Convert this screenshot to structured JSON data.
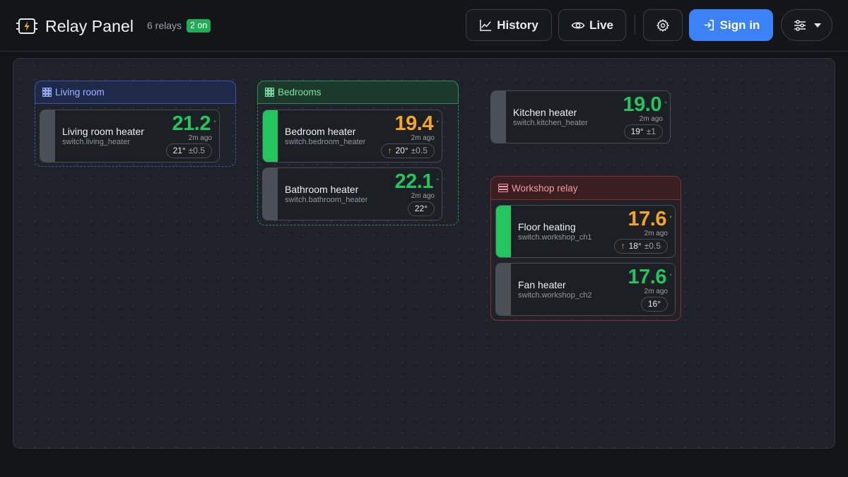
{
  "app": {
    "title": "Relay Panel",
    "relay_count": "6 relays",
    "on_badge": "2 on"
  },
  "toolbar": {
    "history_label": "History",
    "live_label": "Live",
    "signin_label": "Sign in"
  },
  "colors": {
    "on": "#22c55e",
    "off": "#4a4f58",
    "accent": "#3b82f6",
    "heating": "#f5a524"
  },
  "groups": [
    {
      "label": "Living room",
      "icon": "grid-icon",
      "color": "blue",
      "cards": [
        {
          "name": "Living room heater",
          "entity": "switch.living_heater",
          "temp": "21.2",
          "deg": "°",
          "ago": "2m ago",
          "setpoint": "21°",
          "tolerance": "±0.5",
          "on": false,
          "heating": false
        }
      ]
    },
    {
      "label": "Bedrooms",
      "icon": "grid-icon",
      "color": "green",
      "cards": [
        {
          "name": "Bedroom heater",
          "entity": "switch.bedroom_heater",
          "temp": "19.4",
          "deg": "°",
          "ago": "2m ago",
          "setpoint": "20°",
          "tolerance": "±0.5",
          "on": true,
          "heating": true
        },
        {
          "name": "Bathroom heater",
          "entity": "switch.bathroom_heater",
          "temp": "22.1",
          "deg": "°",
          "ago": "2m ago",
          "setpoint": "22°",
          "tolerance": "",
          "on": false,
          "heating": false
        }
      ]
    },
    {
      "label": "Workshop relay",
      "icon": "relay-icon",
      "color": "red",
      "cards": [
        {
          "name": "Floor heating",
          "entity": "switch.workshop_ch1",
          "temp": "17.6",
          "deg": "°",
          "ago": "2m ago",
          "setpoint": "18°",
          "tolerance": "±0.5",
          "on": true,
          "heating": true
        },
        {
          "name": "Fan heater",
          "entity": "switch.workshop_ch2",
          "temp": "17.6",
          "deg": "°",
          "ago": "2m ago",
          "setpoint": "16°",
          "tolerance": "",
          "on": false,
          "heating": false
        }
      ]
    }
  ],
  "standalone": [
    {
      "name": "Kitchen heater",
      "entity": "switch.kitchen_heater",
      "temp": "19.0",
      "deg": "°",
      "ago": "2m ago",
      "setpoint": "19°",
      "tolerance": "±1",
      "on": false,
      "heating": false
    }
  ]
}
